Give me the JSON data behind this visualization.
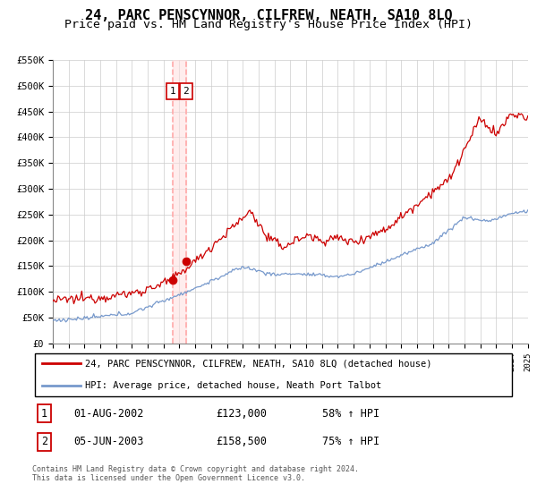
{
  "title": "24, PARC PENSCYNNOR, CILFREW, NEATH, SA10 8LQ",
  "subtitle": "Price paid vs. HM Land Registry's House Price Index (HPI)",
  "title_fontsize": 11,
  "subtitle_fontsize": 9.5,
  "legend_line1": "24, PARC PENSCYNNOR, CILFREW, NEATH, SA10 8LQ (detached house)",
  "legend_line2": "HPI: Average price, detached house, Neath Port Talbot",
  "transaction1_date": "01-AUG-2002",
  "transaction1_price": "£123,000",
  "transaction1_hpi": "58% ↑ HPI",
  "transaction2_date": "05-JUN-2003",
  "transaction2_price": "£158,500",
  "transaction2_hpi": "75% ↑ HPI",
  "footer": "Contains HM Land Registry data © Crown copyright and database right 2024.\nThis data is licensed under the Open Government Licence v3.0.",
  "red_color": "#cc0000",
  "blue_color": "#7799cc",
  "marker_box_color": "#cc0000",
  "vline_color": "#ffaaaa",
  "vband_color": "#ffdddd",
  "ylim": [
    0,
    550000
  ],
  "ytick_step": 50000,
  "xmin": 1995,
  "xmax": 2025,
  "transaction1_x": 2002.583,
  "transaction1_y": 123000,
  "transaction2_x": 2003.417,
  "transaction2_y": 158500
}
